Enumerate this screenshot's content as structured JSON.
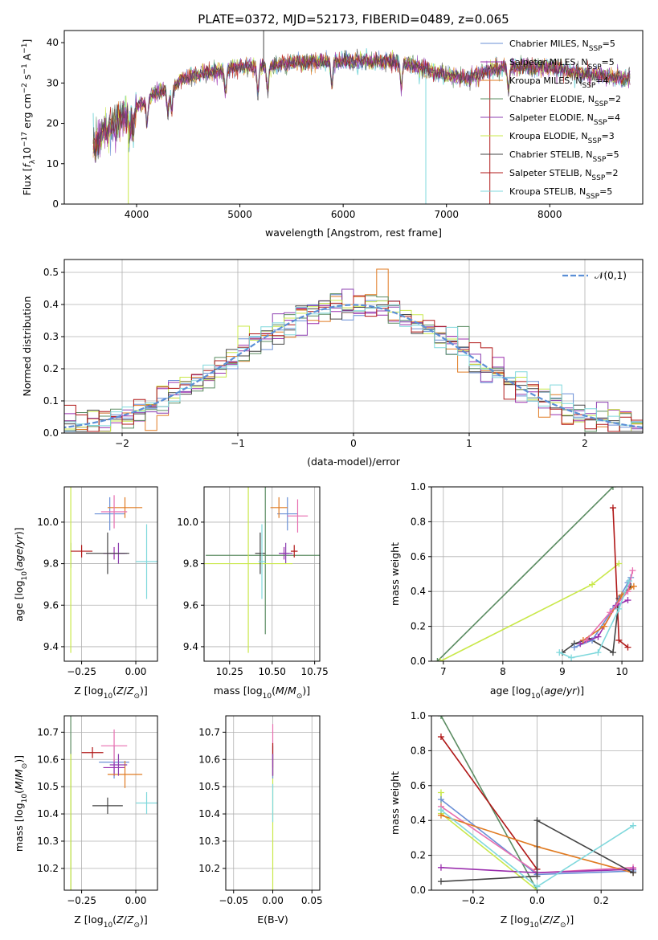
{
  "title": "PLATE=0372, MJD=52173, FIBERID=0489, z=0.065",
  "colors": {
    "chabrier_miles": "#6a8fd6",
    "salpeter_miles": "#9b2fae",
    "kroupa_miles": "#e07b22",
    "chabrier_elodie": "#5b8c62",
    "salpeter_elodie": "#8c3fb0",
    "kroupa_elodie": "#c9e84a",
    "chabrier_stelib": "#444444",
    "salpeter_stelib": "#b01818",
    "kroupa_stelib": "#7fd8dc",
    "pink": "#e86fb0",
    "normal": "#5b8fd6"
  },
  "chart_data": [
    {
      "id": "spectrum",
      "type": "line",
      "xlabel": "wavelength [Angstrom, rest frame]",
      "ylabel": "Flux [f_λ 10^-17 erg cm^-2 s^-1 A^-1]",
      "xlim": [
        3300,
        8900
      ],
      "ylim": [
        0,
        43
      ],
      "xticks": [
        "4000",
        "5000",
        "6000",
        "7000",
        "8000"
      ],
      "yticks": [
        "0",
        "10",
        "20",
        "30",
        "40"
      ],
      "legend_position": "top-right",
      "legend": [
        {
          "pre": "Chabrier MILES, N",
          "sub": "SSP",
          "post": "=5",
          "color": "chabrier_miles"
        },
        {
          "pre": "Salpeter MILES, N",
          "sub": "SSP",
          "post": "=5",
          "color": "salpeter_miles"
        },
        {
          "pre": "Kroupa MILES, N",
          "sub": "SSP",
          "post": "=4",
          "color": "kroupa_miles"
        },
        {
          "pre": "Chabrier ELODIE, N",
          "sub": "SSP",
          "post": "=2",
          "color": "chabrier_elodie"
        },
        {
          "pre": "Salpeter ELODIE, N",
          "sub": "SSP",
          "post": "=4",
          "color": "salpeter_elodie"
        },
        {
          "pre": "Kroupa ELODIE, N",
          "sub": "SSP",
          "post": "=3",
          "color": "kroupa_elodie"
        },
        {
          "pre": "Chabrier STELIB, N",
          "sub": "SSP",
          "post": "=5",
          "color": "chabrier_stelib"
        },
        {
          "pre": "Salpeter STELIB, N",
          "sub": "SSP",
          "post": "=2",
          "color": "salpeter_stelib"
        },
        {
          "pre": "Kroupa STELIB, N",
          "sub": "SSP",
          "post": "=5",
          "color": "kroupa_stelib"
        }
      ],
      "continuum": [
        [
          3580,
          14
        ],
        [
          3650,
          17
        ],
        [
          3750,
          19
        ],
        [
          3850,
          21
        ],
        [
          3950,
          23
        ],
        [
          4050,
          25
        ],
        [
          4150,
          27
        ],
        [
          4250,
          28
        ],
        [
          4350,
          29
        ],
        [
          4450,
          31
        ],
        [
          4600,
          32
        ],
        [
          4800,
          33
        ],
        [
          5000,
          34
        ],
        [
          5200,
          34
        ],
        [
          5500,
          35
        ],
        [
          6000,
          35.5
        ],
        [
          6300,
          35.5
        ],
        [
          6600,
          35
        ],
        [
          6800,
          33.5
        ],
        [
          7000,
          32
        ],
        [
          7200,
          31
        ],
        [
          7400,
          33
        ],
        [
          7600,
          34
        ],
        [
          7800,
          34
        ],
        [
          8000,
          33.8
        ],
        [
          8200,
          33
        ],
        [
          8400,
          32
        ],
        [
          8600,
          31.5
        ],
        [
          8780,
          31
        ]
      ]
    },
    {
      "id": "residuals",
      "type": "histogram",
      "xlabel": "(data-model)/error",
      "ylabel": "Normed distribution",
      "xlim": [
        -2.5,
        2.5
      ],
      "ylim": [
        0,
        0.54
      ],
      "xticks": [
        "−2",
        "−1",
        "0",
        "1",
        "2"
      ],
      "yticks": [
        "0.0",
        "0.1",
        "0.2",
        "0.3",
        "0.4",
        "0.5"
      ],
      "legend_label": "𝒩(0,1)",
      "legend_position": "top-right",
      "bin_width": 0.1
    },
    {
      "id": "age_vs_Z",
      "type": "errorbar",
      "xlabel": "Z [log10(Z/Z⊙)]",
      "ylabel": "age [log10(age/yr)]",
      "xlim": [
        -0.33,
        0.1
      ],
      "ylim": [
        9.33,
        10.17
      ],
      "xticks": [
        -0.25,
        0.0
      ],
      "yticks": [
        9.4,
        9.6,
        9.8,
        10.0
      ],
      "points": [
        {
          "x": -0.12,
          "y": 10.04,
          "xe": 0.07,
          "ye": 0.08,
          "color": "chabrier_miles"
        },
        {
          "x": -0.1,
          "y": 9.85,
          "xe": 0.05,
          "ye": 0.03,
          "color": "salpeter_miles"
        },
        {
          "x": -0.05,
          "y": 10.07,
          "xe": 0.08,
          "ye": 0.05,
          "color": "kroupa_miles"
        },
        {
          "x": -0.3,
          "y": 9.84,
          "xe": 0.0,
          "ye": 0.06,
          "color": "chabrier_elodie"
        },
        {
          "x": -0.08,
          "y": 9.85,
          "xe": 0.04,
          "ye": 0.05,
          "color": "salpeter_elodie"
        },
        {
          "x": -0.3,
          "y": 9.8,
          "xe": 0.0,
          "ye": 0.43,
          "color": "kroupa_elodie"
        },
        {
          "x": -0.13,
          "y": 9.85,
          "xe": 0.1,
          "ye": 0.1,
          "color": "chabrier_stelib"
        },
        {
          "x": -0.25,
          "y": 9.86,
          "xe": 0.05,
          "ye": 0.03,
          "color": "salpeter_stelib"
        },
        {
          "x": 0.05,
          "y": 9.81,
          "xe": 0.05,
          "ye": 0.18,
          "color": "kroupa_stelib"
        },
        {
          "x": -0.1,
          "y": 10.05,
          "xe": 0.06,
          "ye": 0.08,
          "color": "pink"
        }
      ]
    },
    {
      "id": "age_vs_mass",
      "type": "errorbar",
      "xlabel": "mass [log10(M/M⊙)]",
      "ylabel": "",
      "xlim": [
        10.1,
        10.78
      ],
      "ylim": [
        9.33,
        10.17
      ],
      "xticks": [
        10.25,
        10.5,
        10.75
      ],
      "yticks": [
        9.4,
        9.6,
        9.8,
        10.0
      ],
      "points": [
        {
          "x": 10.59,
          "y": 10.04,
          "xe": 0.06,
          "ye": 0.08,
          "color": "chabrier_miles"
        },
        {
          "x": 10.57,
          "y": 9.85,
          "xe": 0.03,
          "ye": 0.03,
          "color": "salpeter_miles"
        },
        {
          "x": 10.54,
          "y": 10.07,
          "xe": 0.05,
          "ye": 0.05,
          "color": "kroupa_miles"
        },
        {
          "x": 10.46,
          "y": 9.84,
          "xe": 0.35,
          "ye": 0.38,
          "color": "chabrier_elodie"
        },
        {
          "x": 10.58,
          "y": 9.85,
          "xe": 0.04,
          "ye": 0.05,
          "color": "salpeter_elodie"
        },
        {
          "x": 10.36,
          "y": 9.8,
          "xe": 0.26,
          "ye": 0.43,
          "color": "kroupa_elodie"
        },
        {
          "x": 10.43,
          "y": 9.85,
          "xe": 0.03,
          "ye": 0.1,
          "color": "chabrier_stelib"
        },
        {
          "x": 10.63,
          "y": 9.86,
          "xe": 0.02,
          "ye": 0.03,
          "color": "salpeter_stelib"
        },
        {
          "x": 10.44,
          "y": 9.81,
          "xe": 0.02,
          "ye": 0.18,
          "color": "kroupa_stelib"
        },
        {
          "x": 10.65,
          "y": 10.03,
          "xe": 0.06,
          "ye": 0.08,
          "color": "pink"
        }
      ]
    },
    {
      "id": "weight_vs_age",
      "type": "line",
      "xlabel": "age [log10(age/yr)]",
      "ylabel": "mass weight",
      "xlim": [
        6.8,
        10.35
      ],
      "ylim": [
        0,
        1.0
      ],
      "xticks": [
        7,
        8,
        9,
        10
      ],
      "yticks": [
        0.0,
        0.2,
        0.4,
        0.6,
        0.8,
        1.0
      ],
      "series": [
        {
          "color": "chabrier_elodie",
          "x": [
            6.9,
            9.85
          ],
          "y": [
            0.0,
            1.0
          ]
        },
        {
          "color": "kroupa_elodie",
          "x": [
            6.95,
            9.5,
            9.95
          ],
          "y": [
            0.0,
            0.44,
            0.56
          ]
        },
        {
          "color": "salpeter_stelib",
          "x": [
            9.85,
            9.95,
            10.1
          ],
          "y": [
            0.88,
            0.12,
            0.08
          ]
        },
        {
          "color": "chabrier_stelib",
          "x": [
            9.0,
            9.2,
            9.45,
            9.85,
            9.95,
            10.15
          ],
          "y": [
            0.05,
            0.1,
            0.13,
            0.05,
            0.36,
            0.43
          ]
        },
        {
          "color": "chabrier_miles",
          "x": [
            9.2,
            9.5,
            9.85,
            10.1,
            10.15
          ],
          "y": [
            0.08,
            0.12,
            0.3,
            0.45,
            0.48
          ]
        },
        {
          "color": "salpeter_miles",
          "x": [
            9.3,
            9.6,
            9.9,
            10.1
          ],
          "y": [
            0.1,
            0.14,
            0.32,
            0.35
          ]
        },
        {
          "color": "kroupa_miles",
          "x": [
            9.35,
            9.7,
            10.0,
            10.2
          ],
          "y": [
            0.12,
            0.2,
            0.38,
            0.43
          ]
        },
        {
          "color": "pink",
          "x": [
            9.4,
            9.8,
            10.1,
            10.18
          ],
          "y": [
            0.12,
            0.28,
            0.4,
            0.52
          ]
        },
        {
          "color": "kroupa_stelib",
          "x": [
            8.95,
            9.15,
            9.6,
            9.95,
            10.12
          ],
          "y": [
            0.05,
            0.02,
            0.05,
            0.3,
            0.46
          ]
        }
      ]
    },
    {
      "id": "mass_vs_Z",
      "type": "errorbar",
      "xlabel": "Z [log10(Z/Z⊙)]",
      "ylabel": "mass [log10(M/M⊙)]",
      "xlim": [
        -0.33,
        0.1
      ],
      "ylim": [
        10.12,
        10.76
      ],
      "xticks": [
        -0.25,
        0.0
      ],
      "yticks": [
        10.2,
        10.3,
        10.4,
        10.5,
        10.6,
        10.7
      ],
      "points": [
        {
          "x": -0.1,
          "y": 10.59,
          "xe": 0.07,
          "ye": 0.06,
          "color": "chabrier_miles"
        },
        {
          "x": -0.1,
          "y": 10.57,
          "xe": 0.05,
          "ye": 0.03,
          "color": "salpeter_miles"
        },
        {
          "x": -0.05,
          "y": 10.545,
          "xe": 0.08,
          "ye": 0.05,
          "color": "kroupa_miles"
        },
        {
          "x": -0.3,
          "y": 10.46,
          "xe": 0.0,
          "ye": 0.35,
          "color": "chabrier_elodie"
        },
        {
          "x": -0.08,
          "y": 10.58,
          "xe": 0.04,
          "ye": 0.04,
          "color": "salpeter_elodie"
        },
        {
          "x": -0.3,
          "y": 10.36,
          "xe": 0.0,
          "ye": 0.26,
          "color": "kroupa_elodie"
        },
        {
          "x": -0.13,
          "y": 10.43,
          "xe": 0.07,
          "ye": 0.03,
          "color": "chabrier_stelib"
        },
        {
          "x": -0.2,
          "y": 10.625,
          "xe": 0.05,
          "ye": 0.02,
          "color": "salpeter_stelib"
        },
        {
          "x": 0.05,
          "y": 10.44,
          "xe": 0.05,
          "ye": 0.04,
          "color": "kroupa_stelib"
        },
        {
          "x": -0.1,
          "y": 10.65,
          "xe": 0.06,
          "ye": 0.06,
          "color": "pink"
        }
      ]
    },
    {
      "id": "mass_vs_EBV",
      "type": "errorbar",
      "xlabel": "E(B-V)",
      "ylabel": "",
      "xlim": [
        -0.06,
        0.06
      ],
      "ylim": [
        10.12,
        10.76
      ],
      "xticks": [
        -0.05,
        0.0,
        0.05
      ],
      "yticks": [
        10.2,
        10.3,
        10.4,
        10.5,
        10.6,
        10.7
      ],
      "points": [
        {
          "x": 0.0,
          "y": 10.36,
          "xe": 0.0,
          "ye": 0.26,
          "color": "kroupa_elodie"
        },
        {
          "x": 0.0,
          "y": 10.44,
          "xe": 0.0,
          "ye": 0.07,
          "color": "kroupa_stelib"
        },
        {
          "x": 0.0,
          "y": 10.59,
          "xe": 0.0,
          "ye": 0.06,
          "color": "chabrier_miles"
        },
        {
          "x": 0.0,
          "y": 10.65,
          "xe": 0.0,
          "ye": 0.08,
          "color": "pink"
        },
        {
          "x": 0.0,
          "y": 10.6,
          "xe": 0.0,
          "ye": 0.06,
          "color": "salpeter_stelib"
        },
        {
          "x": 0.0,
          "y": 10.58,
          "xe": 0.0,
          "ye": 0.04,
          "color": "salpeter_elodie"
        }
      ]
    },
    {
      "id": "weight_vs_Z",
      "type": "line",
      "xlabel": "Z [log10(Z/Z⊙)]",
      "ylabel": "mass weight",
      "xlim": [
        -0.33,
        0.33
      ],
      "ylim": [
        0,
        1.0
      ],
      "xticks": [
        -0.2,
        0.0,
        0.2
      ],
      "yticks": [
        0.0,
        0.2,
        0.4,
        0.6,
        0.8,
        1.0
      ],
      "series": [
        {
          "color": "chabrier_elodie",
          "x": [
            -0.3,
            0.0
          ],
          "y": [
            1.0,
            0.0
          ]
        },
        {
          "color": "salpeter_stelib",
          "x": [
            -0.3,
            0.0
          ],
          "y": [
            0.88,
            0.12
          ]
        },
        {
          "color": "kroupa_elodie",
          "x": [
            -0.3,
            -0.3,
            0.0
          ],
          "y": [
            0.56,
            0.44,
            0.0
          ]
        },
        {
          "color": "chabrier_miles",
          "x": [
            -0.3,
            0.0,
            0.3
          ],
          "y": [
            0.52,
            0.09,
            0.11
          ]
        },
        {
          "color": "pink",
          "x": [
            -0.3,
            0.0,
            0.3
          ],
          "y": [
            0.48,
            0.1,
            0.13
          ]
        },
        {
          "color": "kroupa_miles",
          "x": [
            -0.3,
            0.0,
            0.3
          ],
          "y": [
            0.43,
            0.25,
            0.1
          ]
        },
        {
          "color": "salpeter_miles",
          "x": [
            -0.3,
            0.0,
            0.3
          ],
          "y": [
            0.13,
            0.1,
            0.12
          ]
        },
        {
          "color": "chabrier_stelib",
          "x": [
            -0.3,
            0.0,
            0.0,
            0.3
          ],
          "y": [
            0.05,
            0.08,
            0.4,
            0.1
          ]
        },
        {
          "color": "kroupa_stelib",
          "x": [
            -0.3,
            0.0,
            0.3
          ],
          "y": [
            0.46,
            0.02,
            0.37
          ]
        }
      ]
    }
  ]
}
